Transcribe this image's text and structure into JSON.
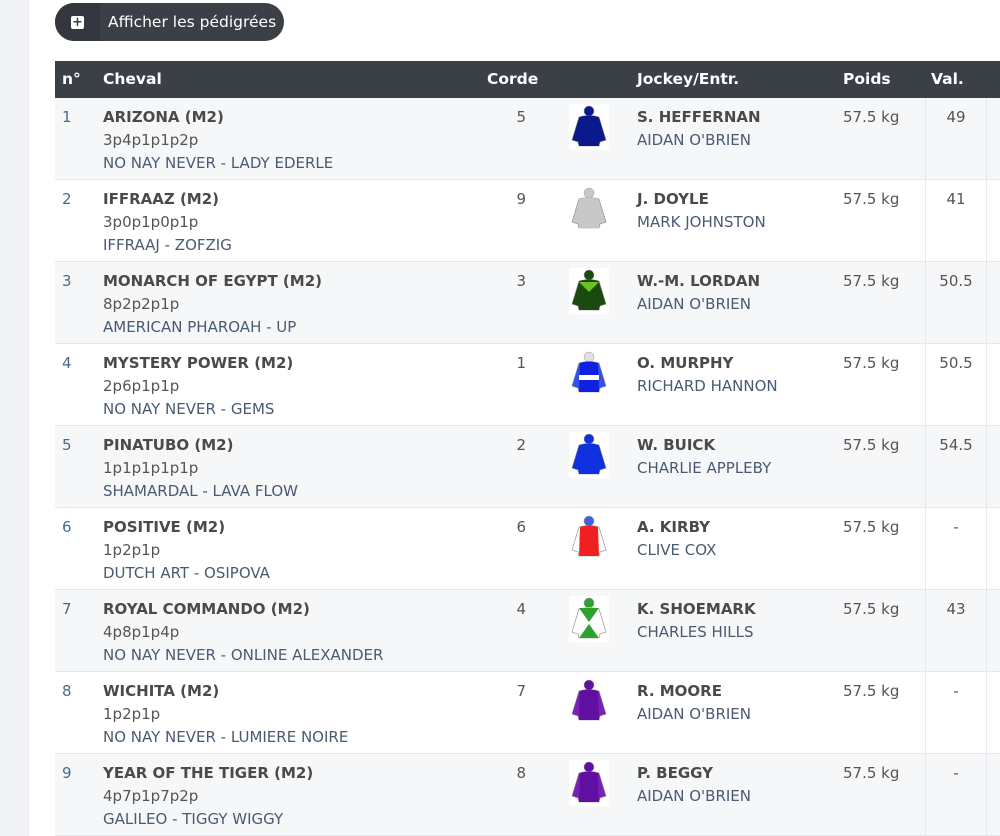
{
  "toolbar": {
    "pedigree_button": "Afficher les pédigrées",
    "pedigree_icon": "plus-square-icon"
  },
  "table": {
    "headers": {
      "num": "n°",
      "horse": "Cheval",
      "corde": "Corde",
      "jockey": "Jockey/Entr.",
      "poids": "Poids",
      "val": "Val."
    },
    "rows": [
      {
        "num": "1",
        "name": "ARIZONA (M2)",
        "form": "3p4p1p1p2p",
        "pedigree": "NO NAY NEVER - LADY EDERLE",
        "corde": "5",
        "jockey": "S. HEFFERNAN",
        "trainer": "AIDAN O'BRIEN",
        "poids": "57.5 kg",
        "val": "49",
        "silk": {
          "cap": "#0a1a8a",
          "body": "#0a1a8a",
          "sleeve": "#0a1a8a",
          "band": ""
        }
      },
      {
        "num": "2",
        "name": "IFFRAAZ (M2)",
        "form": "3p0p1p0p1p",
        "pedigree": "IFFRAAJ - ZOFZIG",
        "corde": "9",
        "jockey": "J. DOYLE",
        "trainer": "MARK JOHNSTON",
        "poids": "57.5 kg",
        "val": "41",
        "silk": {
          "cap": "#c8c8c8",
          "body": "#c8c8c8",
          "sleeve": "#c8c8c8",
          "band": ""
        }
      },
      {
        "num": "3",
        "name": "MONARCH OF EGYPT (M2)",
        "form": "8p2p2p1p",
        "pedigree": "AMERICAN PHAROAH - UP",
        "corde": "3",
        "jockey": "W.-M. LORDAN",
        "trainer": "AIDAN O'BRIEN",
        "poids": "57.5 kg",
        "val": "50.5",
        "silk": {
          "cap": "#1a4a10",
          "body": "#1a4a10",
          "sleeve": "#1a4a10",
          "band": "#6fc020"
        }
      },
      {
        "num": "4",
        "name": "MYSTERY POWER (M2)",
        "form": "2p6p1p1p",
        "pedigree": "NO NAY NEVER - GEMS",
        "corde": "1",
        "jockey": "O. MURPHY",
        "trainer": "RICHARD HANNON",
        "poids": "57.5 kg",
        "val": "50.5",
        "silk": {
          "cap": "#e0e0e0",
          "body": "#1020e0",
          "sleeve": "#3050f0",
          "band": "#ffffff"
        }
      },
      {
        "num": "5",
        "name": "PINATUBO (M2)",
        "form": "1p1p1p1p1p",
        "pedigree": "SHAMARDAL - LAVA FLOW",
        "corde": "2",
        "jockey": "W. BUICK",
        "trainer": "CHARLIE APPLEBY",
        "poids": "57.5 kg",
        "val": "54.5",
        "silk": {
          "cap": "#1030e0",
          "body": "#1030e0",
          "sleeve": "#1030e0",
          "band": ""
        }
      },
      {
        "num": "6",
        "name": "POSITIVE (M2)",
        "form": "1p2p1p",
        "pedigree": "DUTCH ART - OSIPOVA",
        "corde": "6",
        "jockey": "A. KIRBY",
        "trainer": "CLIVE COX",
        "poids": "57.5 kg",
        "val": "-",
        "silk": {
          "cap": "#4060e0",
          "body": "#f02020",
          "sleeve": "#ffffff",
          "band": ""
        }
      },
      {
        "num": "7",
        "name": "ROYAL COMMANDO (M2)",
        "form": "4p8p1p4p",
        "pedigree": "NO NAY NEVER - ONLINE ALEXANDER",
        "corde": "4",
        "jockey": "K. SHOEMARK",
        "trainer": "CHARLES HILLS",
        "poids": "57.5 kg",
        "val": "43",
        "silk": {
          "cap": "#30a030",
          "body": "#ffffff",
          "sleeve": "#ffffff",
          "band": "#30a030"
        }
      },
      {
        "num": "8",
        "name": "WICHITA (M2)",
        "form": "1p2p1p",
        "pedigree": "NO NAY NEVER - LUMIERE NOIRE",
        "corde": "7",
        "jockey": "R. MOORE",
        "trainer": "AIDAN O'BRIEN",
        "poids": "57.5 kg",
        "val": "-",
        "silk": {
          "cap": "#6010a0",
          "body": "#6010a0",
          "sleeve": "#7a20b8",
          "band": ""
        }
      },
      {
        "num": "9",
        "name": "YEAR OF THE TIGER (M2)",
        "form": "4p7p1p7p2p",
        "pedigree": "GALILEO - TIGGY WIGGY",
        "corde": "8",
        "jockey": "P. BEGGY",
        "trainer": "AIDAN O'BRIEN",
        "poids": "57.5 kg",
        "val": "-",
        "silk": {
          "cap": "#6010a0",
          "body": "#6010a0",
          "sleeve": "#7a20b8",
          "band": ""
        }
      }
    ]
  }
}
